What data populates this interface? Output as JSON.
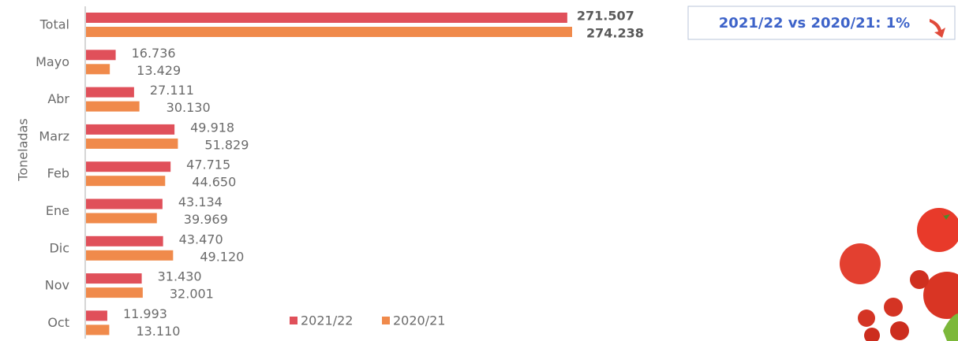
{
  "chart_data": {
    "type": "bar",
    "orientation": "horizontal",
    "y_label": "Toneladas",
    "annotation": "2021/22 vs 2020/21: 1%",
    "categories": [
      "Total",
      "Mayo",
      "Abr",
      "Marz",
      "Feb",
      "Ene",
      "Dic",
      "Nov",
      "Oct"
    ],
    "series": [
      {
        "name": "2021/22",
        "color": "#e0505a",
        "values": [
          271507,
          16736,
          27111,
          49918,
          47715,
          43134,
          43470,
          31430,
          11993
        ],
        "value_labels": [
          "271.507",
          "16.736",
          "27.111",
          "49.918",
          "47.715",
          "43.134",
          "43.470",
          "31.430",
          "11.993"
        ]
      },
      {
        "name": "2020/21",
        "color": "#f08a4b",
        "values": [
          274238,
          13429,
          30130,
          51829,
          44650,
          39969,
          49120,
          32001,
          13110
        ],
        "value_labels": [
          "274.238",
          "13.429",
          "30.130",
          "51.829",
          "44.650",
          "39.969",
          "49.120",
          "32.001",
          "13.110"
        ]
      }
    ]
  }
}
